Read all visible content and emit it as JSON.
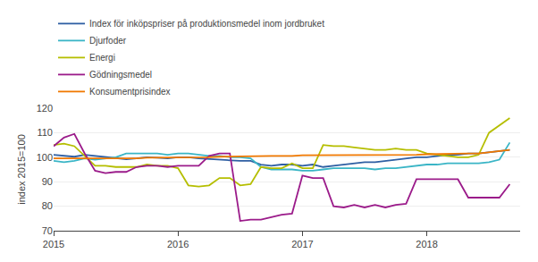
{
  "chart_data": {
    "type": "line",
    "ylabel": "index 2015=100",
    "x": [
      2015,
      2015.0833333333333,
      2015.1666666666667,
      2015.25,
      2015.3333333333333,
      2015.4166666666667,
      2015.5,
      2015.5833333333333,
      2015.6666666666667,
      2015.75,
      2015.8333333333333,
      2015.9166666666667,
      2016,
      2016.0833333333333,
      2016.1666666666667,
      2016.25,
      2016.3333333333333,
      2016.4166666666667,
      2016.5,
      2016.5833333333333,
      2016.6666666666667,
      2016.75,
      2016.8333333333333,
      2016.9166666666667,
      2017,
      2017.0833333333333,
      2017.1666666666667,
      2017.25,
      2017.3333333333333,
      2017.4166666666667,
      2017.5,
      2017.5833333333333,
      2017.6666666666667,
      2017.75,
      2017.8333333333333,
      2017.9166666666667,
      2018,
      2018.0833333333333,
      2018.1666666666667,
      2018.25,
      2018.3333333333333,
      2018.4166666666667,
      2018.5,
      2018.5833333333333,
      2018.6666666666667
    ],
    "xlim": [
      2015.0,
      2018.75
    ],
    "xticks": [
      2015,
      2016,
      2017,
      2018
    ],
    "ylim": [
      70,
      120
    ],
    "yticks": [
      70,
      80,
      90,
      100,
      110,
      120
    ],
    "grid": "y",
    "legend": "upper left",
    "series": [
      {
        "name": "Index för inköpspriser på produktionsmedel inom jordbruket",
        "color": "#2e5fa3",
        "values": [
          101.0,
          100.5,
          100.2,
          101.0,
          100.5,
          100.0,
          99.5,
          99.2,
          99.5,
          100.0,
          99.8,
          99.5,
          100.0,
          100.0,
          99.5,
          99.2,
          99.0,
          98.8,
          98.5,
          98.5,
          97.0,
          96.5,
          97.0,
          97.0,
          96.5,
          97.0,
          96.0,
          96.5,
          97.0,
          97.5,
          98.0,
          98.0,
          98.5,
          99.0,
          99.5,
          100.0,
          100.0,
          100.5,
          101.0,
          101.0,
          101.5,
          101.5,
          102.0,
          102.5,
          103.0
        ]
      },
      {
        "name": "Djurfoder",
        "color": "#3ab5c6",
        "values": [
          98.5,
          98.0,
          98.5,
          99.5,
          99.0,
          99.5,
          100.0,
          101.5,
          101.5,
          101.5,
          101.5,
          101.0,
          101.5,
          101.5,
          101.0,
          100.5,
          100.5,
          100.0,
          100.0,
          99.5,
          96.0,
          95.0,
          95.0,
          95.0,
          94.5,
          94.5,
          95.0,
          95.5,
          95.5,
          95.5,
          95.5,
          95.0,
          95.5,
          95.5,
          96.0,
          96.5,
          97.0,
          97.0,
          97.5,
          97.5,
          97.5,
          97.5,
          98.0,
          99.0,
          106.0
        ]
      },
      {
        "name": "Energi",
        "color": "#b5be00",
        "values": [
          105.0,
          105.5,
          104.5,
          100.5,
          96.5,
          96.5,
          96.0,
          96.0,
          96.0,
          97.0,
          96.5,
          96.5,
          95.5,
          88.5,
          88.0,
          88.5,
          91.5,
          91.5,
          88.5,
          89.0,
          96.0,
          95.5,
          95.5,
          97.5,
          95.5,
          95.5,
          105.0,
          104.5,
          104.5,
          104.0,
          103.5,
          103.0,
          103.0,
          103.5,
          103.0,
          103.0,
          101.5,
          101.0,
          100.5,
          100.0,
          100.0,
          101.0,
          110.0,
          113.0,
          116.0
        ]
      },
      {
        "name": "Gödningsmedel",
        "color": "#9b1b8a",
        "values": [
          104.5,
          108.0,
          109.5,
          101.5,
          94.5,
          93.5,
          94.0,
          94.0,
          96.0,
          96.5,
          96.5,
          96.0,
          96.5,
          96.5,
          96.5,
          100.5,
          101.5,
          101.5,
          74.0,
          74.5,
          74.5,
          75.5,
          76.5,
          77.0,
          92.5,
          91.5,
          91.5,
          80.0,
          79.5,
          80.5,
          79.5,
          80.5,
          79.5,
          80.5,
          81.0,
          91.0,
          91.0,
          91.0,
          91.0,
          91.0,
          83.5,
          83.5,
          83.5,
          83.5,
          89.0
        ]
      },
      {
        "name": "Konsumentprisindex",
        "color": "#f07800",
        "values": [
          99.5,
          99.5,
          99.5,
          99.5,
          99.5,
          99.5,
          99.5,
          99.5,
          99.5,
          99.8,
          99.8,
          100.0,
          100.0,
          100.0,
          100.0,
          100.0,
          100.2,
          100.3,
          100.3,
          100.3,
          100.5,
          100.5,
          100.5,
          100.5,
          100.8,
          100.8,
          101.0,
          101.0,
          101.0,
          101.0,
          101.0,
          101.0,
          101.0,
          101.0,
          101.0,
          101.0,
          101.2,
          101.3,
          101.5,
          101.5,
          101.5,
          101.5,
          102.0,
          102.5,
          103.0
        ]
      }
    ]
  }
}
